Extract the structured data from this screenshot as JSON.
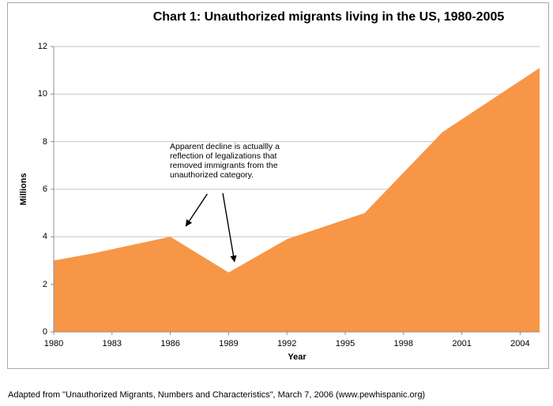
{
  "title": "Chart 1: Unauthorized migrants living in the US, 1980-2005",
  "footer": "Adapted from \"Unauthorized Migrants, Numbers and Characteristics\", March 7, 2006 (www.pewhispanic.org)",
  "colors": {
    "area": "#F79646",
    "gridline": "#C6C6C6",
    "axis": "#8F8F8F",
    "frame_border": "#A8A8A8",
    "arrow": "#000000"
  },
  "chart_data": {
    "type": "area",
    "title": "Chart 1: Unauthorized migrants living in the US, 1980-2005",
    "xlabel": "Year",
    "ylabel": "Millions",
    "x": [
      1980,
      1982,
      1986,
      1989,
      1992,
      1996,
      2000,
      2005
    ],
    "values": [
      3.0,
      3.3,
      4.0,
      2.5,
      3.9,
      5.0,
      8.4,
      11.1
    ],
    "xlim": [
      1980,
      2005
    ],
    "ylim": [
      0,
      12
    ],
    "xticks": [
      1980,
      1983,
      1986,
      1989,
      1992,
      1995,
      1998,
      2001,
      2004
    ],
    "yticks": [
      0,
      2,
      4,
      6,
      8,
      10,
      12
    ],
    "grid": "horizontal",
    "legend": "none",
    "annotations": [
      {
        "text_lines": [
          "Apparent decline is actuallly a",
          "reflection of legalizations that",
          "removed immigrants from the",
          "unauthorized category."
        ],
        "arrows": [
          {
            "from": [
              1987.9,
              5.8
            ],
            "to": [
              1986.8,
              4.45
            ]
          },
          {
            "from": [
              1988.7,
              5.83
            ],
            "to": [
              1989.3,
              2.95
            ]
          }
        ]
      }
    ]
  }
}
